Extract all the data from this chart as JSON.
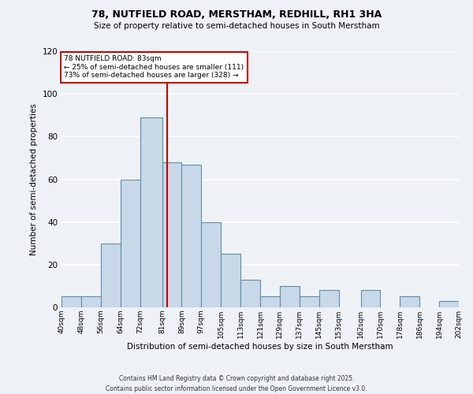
{
  "title1": "78, NUTFIELD ROAD, MERSTHAM, REDHILL, RH1 3HA",
  "title2": "Size of property relative to semi-detached houses in South Merstham",
  "xlabel": "Distribution of semi-detached houses by size in South Merstham",
  "ylabel": "Number of semi-detached properties",
  "annotation_line": "78 NUTFIELD ROAD: 83sqm",
  "annotation_smaller": "← 25% of semi-detached houses are smaller (111)",
  "annotation_larger": "73% of semi-detached houses are larger (328) →",
  "property_size": 83,
  "bin_edges": [
    40,
    48,
    56,
    64,
    72,
    81,
    89,
    97,
    105,
    113,
    121,
    129,
    137,
    145,
    153,
    162,
    170,
    178,
    186,
    194,
    202
  ],
  "bar_heights": [
    5,
    5,
    30,
    60,
    89,
    68,
    67,
    40,
    25,
    13,
    5,
    10,
    5,
    8,
    0,
    8,
    0,
    5,
    0,
    3
  ],
  "bar_color": "#c8d8e8",
  "bar_edge_color": "#5b8fa8",
  "vline_color": "#cc0000",
  "vline_x": 83,
  "box_color": "#cc0000",
  "background_color": "#eef2f7",
  "grid_color": "#ffffff",
  "footer": "Contains HM Land Registry data © Crown copyright and database right 2025.\nContains public sector information licensed under the Open Government Licence v3.0.",
  "ylim": [
    0,
    120
  ],
  "yticks": [
    0,
    20,
    40,
    60,
    80,
    100,
    120
  ]
}
